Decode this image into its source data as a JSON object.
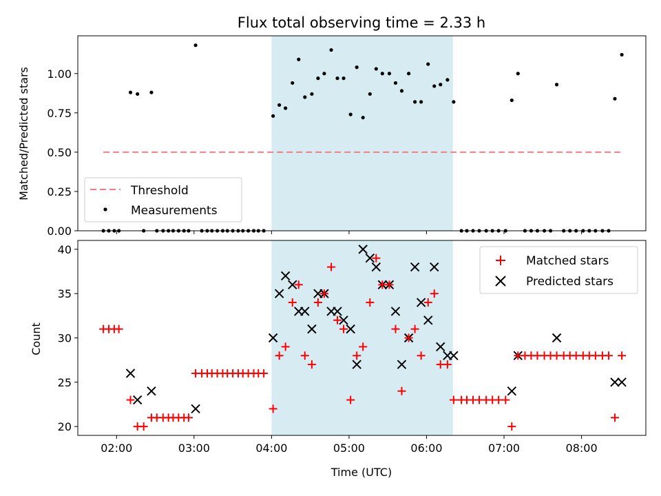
{
  "chart_data": [
    {
      "type": "scatter",
      "title": "Flux total observing time = 2.33 h",
      "ylabel": "Matched/Predicted stars",
      "ylim": [
        0,
        1.24
      ],
      "yticks": [
        "0.00",
        "0.25",
        "0.50",
        "0.75",
        "1.00"
      ],
      "xlim": [
        1.5,
        8.83
      ],
      "shaded_span": [
        4.0,
        6.34
      ],
      "shade_color": "#add8e6",
      "legend": {
        "placement": "lower-left",
        "entries": [
          "Threshold",
          "Measurements"
        ]
      },
      "threshold": {
        "name": "Threshold",
        "value": 0.5,
        "x": [
          1.83,
          8.5
        ],
        "color": "#f08080"
      },
      "measurements": {
        "name": "Measurements",
        "color": "#000000",
        "x": [
          1.83,
          1.9,
          1.97,
          2.03,
          2.18,
          2.27,
          2.35,
          2.45,
          2.52,
          2.6,
          2.67,
          2.73,
          2.8,
          2.87,
          2.93,
          3.02,
          3.1,
          3.17,
          3.23,
          3.3,
          3.37,
          3.43,
          3.5,
          3.57,
          3.63,
          3.7,
          3.77,
          3.83,
          3.9,
          4.02,
          4.1,
          4.18,
          4.27,
          4.35,
          4.43,
          4.52,
          4.6,
          4.68,
          4.77,
          4.85,
          4.93,
          5.02,
          5.1,
          5.18,
          5.27,
          5.35,
          5.43,
          5.52,
          5.6,
          5.68,
          5.77,
          5.85,
          5.93,
          6.02,
          6.1,
          6.18,
          6.27,
          6.35,
          6.45,
          6.52,
          6.6,
          6.68,
          6.77,
          6.85,
          6.93,
          7.02,
          7.1,
          7.18,
          7.27,
          7.35,
          7.43,
          7.52,
          7.6,
          7.68,
          7.77,
          7.85,
          7.93,
          8.02,
          8.1,
          8.18,
          8.27,
          8.35,
          8.43,
          8.52
        ],
        "y": [
          0,
          0,
          0,
          0,
          0.88,
          0.87,
          0,
          0.88,
          0,
          0,
          0,
          0,
          0,
          0,
          0,
          1.18,
          0,
          0,
          0,
          0,
          0,
          0,
          0,
          0,
          0,
          0,
          0,
          0,
          0,
          0.73,
          0.8,
          0.78,
          0.94,
          1.09,
          0.85,
          0.87,
          0.97,
          1.0,
          1.15,
          0.97,
          0.97,
          0.74,
          1.04,
          0.72,
          0.87,
          1.03,
          1.0,
          1.0,
          0.94,
          0.89,
          1.0,
          0.82,
          0.82,
          1.06,
          0.92,
          0.93,
          0.96,
          0.82,
          0,
          0,
          0,
          0,
          0,
          0,
          0,
          0,
          0.83,
          1.0,
          0,
          0,
          0,
          0,
          0,
          0.93,
          0,
          0,
          0,
          0,
          0,
          0,
          0,
          0,
          0.84,
          1.12
        ]
      }
    },
    {
      "type": "scatter",
      "xlabel": "Time (UTC)",
      "ylabel": "Count",
      "ylim": [
        19,
        41
      ],
      "yticks": [
        "20",
        "25",
        "30",
        "35",
        "40"
      ],
      "xlim": [
        1.5,
        8.83
      ],
      "xticks": [
        {
          "value": 2,
          "label": "02:00"
        },
        {
          "value": 3,
          "label": "03:00"
        },
        {
          "value": 4,
          "label": "04:00"
        },
        {
          "value": 5,
          "label": "05:00"
        },
        {
          "value": 6,
          "label": "06:00"
        },
        {
          "value": 7,
          "label": "07:00"
        },
        {
          "value": 8,
          "label": "08:00"
        }
      ],
      "shaded_span": [
        4.0,
        6.34
      ],
      "shade_color": "#add8e6",
      "legend": {
        "placement": "top-right",
        "entries": [
          "Matched stars",
          "Predicted stars"
        ]
      },
      "matched": {
        "name": "Matched stars",
        "color": "#ff0000",
        "x": [
          1.83,
          1.9,
          1.97,
          2.03,
          2.18,
          2.27,
          2.35,
          2.45,
          2.52,
          2.6,
          2.67,
          2.73,
          2.8,
          2.87,
          2.93,
          3.02,
          3.1,
          3.17,
          3.23,
          3.3,
          3.37,
          3.43,
          3.5,
          3.57,
          3.63,
          3.7,
          3.77,
          3.83,
          3.9,
          4.02,
          4.1,
          4.18,
          4.27,
          4.35,
          4.43,
          4.52,
          4.6,
          4.68,
          4.77,
          4.85,
          4.93,
          5.02,
          5.1,
          5.18,
          5.27,
          5.35,
          5.43,
          5.52,
          5.6,
          5.68,
          5.77,
          5.85,
          5.93,
          6.02,
          6.1,
          6.18,
          6.27,
          6.35,
          6.45,
          6.52,
          6.6,
          6.68,
          6.77,
          6.85,
          6.93,
          7.02,
          7.1,
          7.18,
          7.27,
          7.35,
          7.43,
          7.52,
          7.6,
          7.68,
          7.77,
          7.85,
          7.93,
          8.02,
          8.1,
          8.18,
          8.27,
          8.35,
          8.43,
          8.52
        ],
        "y": [
          31,
          31,
          31,
          31,
          23,
          20,
          20,
          21,
          21,
          21,
          21,
          21,
          21,
          21,
          21,
          26,
          26,
          26,
          26,
          26,
          26,
          26,
          26,
          26,
          26,
          26,
          26,
          26,
          26,
          22,
          28,
          29,
          34,
          36,
          28,
          27,
          34,
          35,
          38,
          32,
          31,
          23,
          28,
          29,
          34,
          39,
          36,
          36,
          31,
          24,
          30,
          31,
          28,
          34,
          35,
          27,
          27,
          23,
          23,
          23,
          23,
          23,
          23,
          23,
          23,
          23,
          20,
          28,
          28,
          28,
          28,
          28,
          28,
          28,
          28,
          28,
          28,
          28,
          28,
          28,
          28,
          28,
          21,
          28
        ]
      },
      "predicted": {
        "name": "Predicted stars",
        "color": "#000000",
        "x": [
          2.18,
          2.27,
          2.45,
          3.02,
          4.02,
          4.1,
          4.18,
          4.27,
          4.35,
          4.43,
          4.52,
          4.6,
          4.68,
          4.77,
          4.85,
          4.93,
          5.02,
          5.1,
          5.18,
          5.27,
          5.35,
          5.43,
          5.52,
          5.6,
          5.68,
          5.77,
          5.85,
          5.93,
          6.02,
          6.1,
          6.18,
          6.27,
          6.35,
          7.1,
          7.18,
          7.68,
          8.43,
          8.52
        ],
        "y": [
          26,
          23,
          24,
          22,
          30,
          35,
          37,
          36,
          33,
          33,
          31,
          35,
          35,
          33,
          33,
          32,
          31,
          27,
          40,
          39,
          38,
          36,
          36,
          33,
          27,
          30,
          38,
          34,
          32,
          38,
          29,
          28,
          28,
          24,
          28,
          30,
          25,
          25
        ]
      }
    }
  ]
}
